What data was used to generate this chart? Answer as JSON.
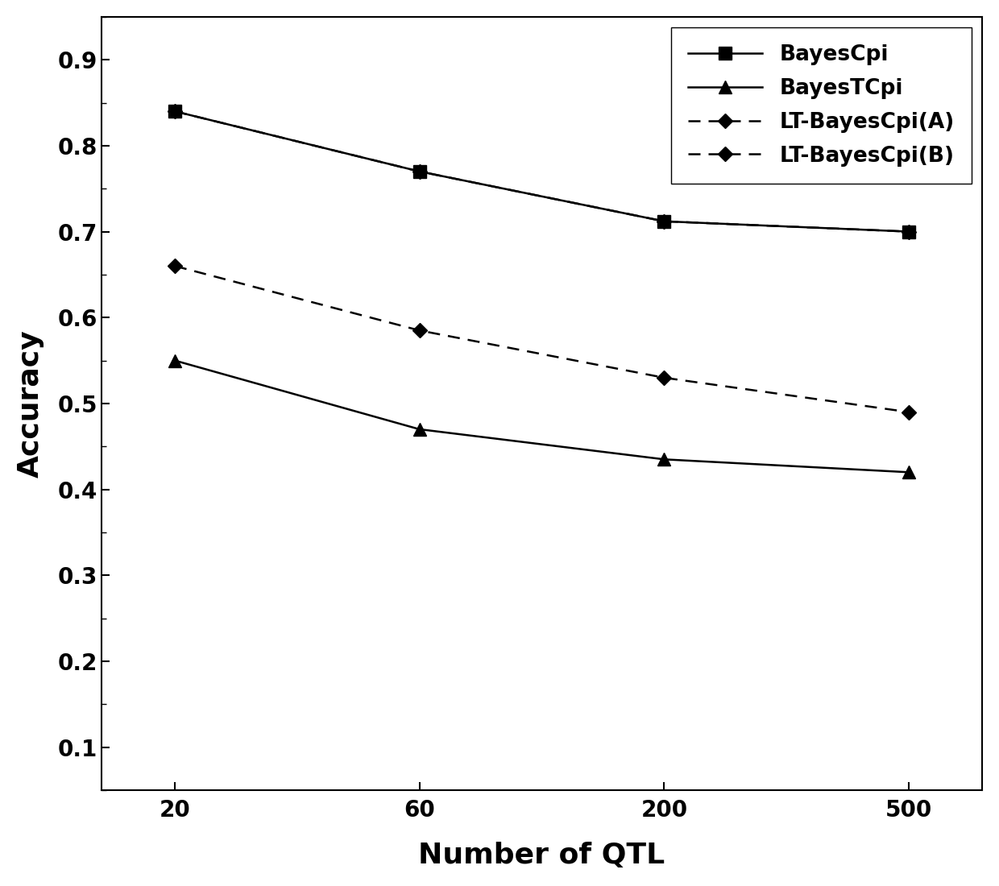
{
  "x_positions": [
    0,
    1,
    2,
    3
  ],
  "x_labels": [
    "20",
    "60",
    "200",
    "500"
  ],
  "BayesCpi": [
    0.84,
    0.77,
    0.712,
    0.7
  ],
  "BayesTCpi": [
    0.55,
    0.47,
    0.435,
    0.42
  ],
  "LT_BayesCpi_A": [
    0.84,
    0.77,
    0.712,
    0.7
  ],
  "LT_BayesCpi_B": [
    0.66,
    0.585,
    0.53,
    0.49
  ],
  "xlabel": "Number of QTL",
  "ylabel": "Accuracy",
  "ylim": [
    0.05,
    0.95
  ],
  "yticks": [
    0.1,
    0.2,
    0.3,
    0.4,
    0.5,
    0.6,
    0.7,
    0.8,
    0.9
  ],
  "legend_labels": [
    "BayesCpi",
    "BayesTCpi",
    "LT-BayesCpi(A)",
    "LT-BayesCpi(B)"
  ],
  "line_color": "#000000",
  "background_color": "#ffffff",
  "axis_fontsize": 26,
  "tick_fontsize": 20,
  "legend_fontsize": 19
}
